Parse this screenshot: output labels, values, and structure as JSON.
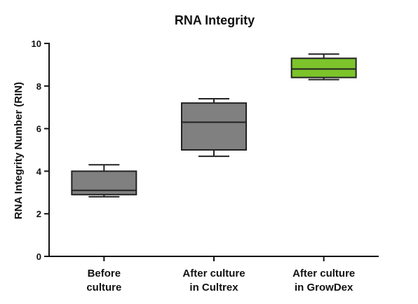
{
  "chart_data": {
    "type": "box",
    "title": "RNA Integrity",
    "xlabel": "",
    "ylabel": "RNA Integrity Number (RIN)",
    "ylim": [
      0,
      10
    ],
    "yticks": [
      0,
      2,
      4,
      6,
      8,
      10
    ],
    "grid": false,
    "legend": "none",
    "categories": [
      [
        "Before",
        "culture"
      ],
      [
        "After culture",
        "in Cultrex"
      ],
      [
        "After culture",
        "in GrowDex"
      ]
    ],
    "boxes": [
      {
        "min": 2.8,
        "q1": 2.9,
        "median": 3.1,
        "q3": 4.0,
        "max": 4.3,
        "color": "#808080"
      },
      {
        "min": 4.7,
        "q1": 5.0,
        "median": 6.3,
        "q3": 7.2,
        "max": 7.4,
        "color": "#808080"
      },
      {
        "min": 8.3,
        "q1": 8.4,
        "median": 8.8,
        "q3": 9.3,
        "max": 9.5,
        "color": "#7dc42b"
      }
    ]
  }
}
